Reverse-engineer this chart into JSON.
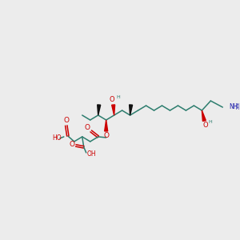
{
  "bg": "#ececec",
  "bc": "#2d7d6e",
  "oc": "#cc0000",
  "nc": "#1a1aaa",
  "bk": "#111111",
  "lw": 1.1,
  "fs": 5.5,
  "fig_w": 3.0,
  "fig_h": 3.0,
  "dpi": 100,
  "xlim": [
    0,
    300
  ],
  "ylim": [
    0,
    300
  ]
}
